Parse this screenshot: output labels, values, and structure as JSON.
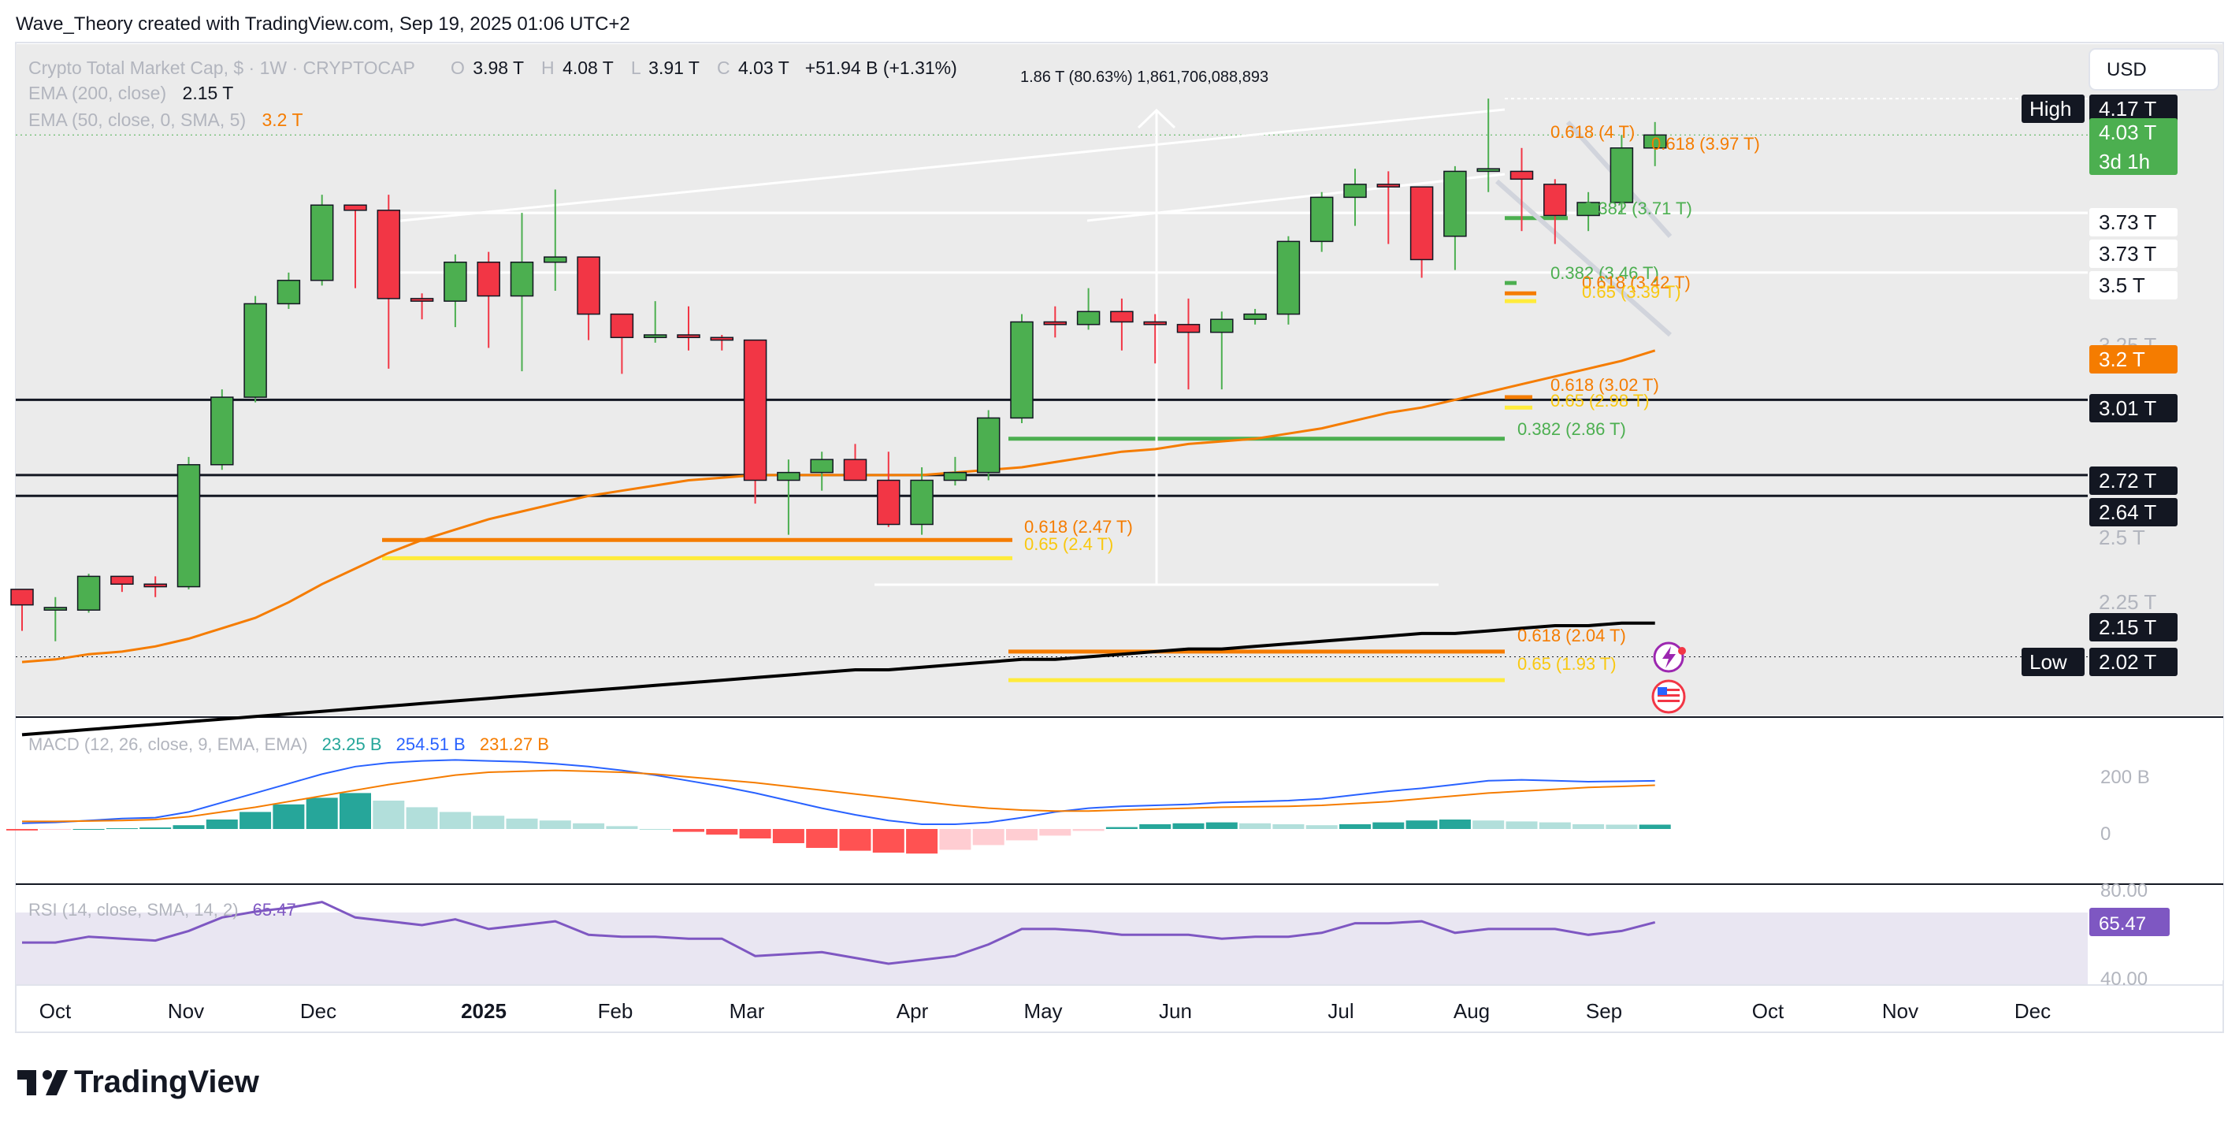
{
  "header": {
    "attribution": "Wave_Theory created with TradingView.com, Sep 19, 2025 01:06 UTC+2",
    "logo_text": "TradingView"
  },
  "legend": {
    "symbol": "Crypto Total Market Cap, $ · 1W · CRYPTOCAP",
    "o_label": "O",
    "o": "3.98 T",
    "h_label": "H",
    "h": "4.08 T",
    "l_label": "L",
    "l": "3.91 T",
    "c_label": "C",
    "c": "4.03 T",
    "change": "+51.94 B (+1.31%)",
    "ema200_label": "EMA (200, close)",
    "ema200_value": "2.15 T",
    "ema50_label": "EMA (50, close, 0, SMA, 5)",
    "ema50_value": "3.2 T"
  },
  "measure_label": "1.86 T (80.63%) 1,861,706,088,893",
  "currency_button": "USD",
  "colors": {
    "up": "#4caf50",
    "down": "#f23645",
    "ema50": "#f57c00",
    "ema200": "#000000",
    "macd_line": "#2962ff",
    "signal_line": "#f57c00",
    "rsi": "#7e57c2",
    "fib_orange": "#f57c00",
    "fib_yellow": "#ffeb3b",
    "fib_green": "#4caf50",
    "hist_teal": "#26a69a"
  },
  "price_tags": [
    {
      "prefix": "High",
      "value": "4.17 T",
      "style": "dark"
    },
    {
      "value": "4.03 T",
      "sub": "3d 1h",
      "style": "green"
    },
    {
      "value": "3.73 T",
      "style": "light"
    },
    {
      "value": "3.73 T",
      "style": "light"
    },
    {
      "value": "3.5 T",
      "style": "light"
    },
    {
      "value": "3.25 T",
      "style": "faded"
    },
    {
      "value": "3.2 T",
      "style": "orange"
    },
    {
      "value": "3.01 T",
      "style": "dark"
    },
    {
      "value": "2.72 T",
      "style": "dark"
    },
    {
      "value": "2.64 T",
      "style": "dark"
    },
    {
      "value": "2.5 T",
      "style": "faded"
    },
    {
      "value": "2.25 T",
      "style": "faded"
    },
    {
      "value": "2.15 T",
      "style": "dark"
    },
    {
      "prefix": "Low",
      "value": "2.02 T",
      "style": "dark"
    }
  ],
  "fib_labels": [
    {
      "text": "0.618 (4 T)",
      "color": "orange"
    },
    {
      "text": "0.618 (3.97 T)",
      "color": "orange"
    },
    {
      "text": "0.382 (3.71 T)",
      "color": "green"
    },
    {
      "text": "0.382 (3.46 T)",
      "color": "green"
    },
    {
      "text": "0.618 (3.42 T)",
      "color": "orange"
    },
    {
      "text": "0.65 (3.39 T)",
      "color": "yellow"
    },
    {
      "text": "0.618 (3.02 T)",
      "color": "orange"
    },
    {
      "text": "0.65 (2.98 T)",
      "color": "yellow"
    },
    {
      "text": "0.382 (2.86 T)",
      "color": "green"
    },
    {
      "text": "0.618 (2.47 T)",
      "color": "orange"
    },
    {
      "text": "0.65 (2.4 T)",
      "color": "yellow"
    },
    {
      "text": "0.618 (2.04 T)",
      "color": "orange"
    },
    {
      "text": "0.65 (1.93 T)",
      "color": "yellow"
    }
  ],
  "macd": {
    "label": "MACD (12, 26, close, 9, EMA, EMA)",
    "hist_value": "23.25 B",
    "macd_value": "254.51 B",
    "signal_value": "231.27 B",
    "axis": [
      "200 B",
      "0"
    ]
  },
  "rsi": {
    "label": "RSI (14, close, SMA, 14, 2)",
    "value": "65.47",
    "axis": [
      "80.00",
      "40.00"
    ]
  },
  "time_axis": [
    "Oct",
    "Nov",
    "Dec",
    "2025",
    "Feb",
    "Mar",
    "Apr",
    "May",
    "Jun",
    "Jul",
    "Aug",
    "Sep",
    "Oct",
    "Nov",
    "Dec"
  ],
  "chart_data": {
    "type": "candlestick",
    "title": "Crypto Total Market Cap, $ · 1W · CRYPTOCAP",
    "unit": "T",
    "ylim": [
      1.8,
      4.38
    ],
    "candles": [
      [
        2.28,
        2.22,
        2.24,
        2.12
      ],
      [
        2.2,
        2.21,
        2.25,
        2.08
      ],
      [
        2.2,
        2.33,
        2.34,
        2.19
      ],
      [
        2.33,
        2.3,
        2.33,
        2.27
      ],
      [
        2.3,
        2.29,
        2.33,
        2.25
      ],
      [
        2.29,
        2.76,
        2.79,
        2.28
      ],
      [
        2.76,
        3.02,
        3.05,
        2.74
      ],
      [
        3.02,
        3.38,
        3.41,
        3.0
      ],
      [
        3.38,
        3.47,
        3.5,
        3.36
      ],
      [
        3.47,
        3.76,
        3.8,
        3.45
      ],
      [
        3.76,
        3.74,
        3.75,
        3.44
      ],
      [
        3.74,
        3.4,
        3.8,
        3.13
      ],
      [
        3.4,
        3.39,
        3.42,
        3.32
      ],
      [
        3.39,
        3.54,
        3.57,
        3.29
      ],
      [
        3.54,
        3.41,
        3.58,
        3.21
      ],
      [
        3.41,
        3.54,
        3.73,
        3.12
      ],
      [
        3.54,
        3.56,
        3.82,
        3.43
      ],
      [
        3.56,
        3.34,
        3.56,
        3.24
      ],
      [
        3.34,
        3.25,
        3.28,
        3.11
      ],
      [
        3.25,
        3.26,
        3.39,
        3.23
      ],
      [
        3.26,
        3.25,
        3.37,
        3.2
      ],
      [
        3.25,
        3.24,
        3.26,
        3.2
      ],
      [
        3.24,
        2.7,
        3.24,
        2.61
      ],
      [
        2.7,
        2.73,
        2.78,
        2.49
      ],
      [
        2.73,
        2.78,
        2.81,
        2.66
      ],
      [
        2.78,
        2.7,
        2.84,
        2.7
      ],
      [
        2.7,
        2.53,
        2.81,
        2.52
      ],
      [
        2.53,
        2.7,
        2.75,
        2.49
      ],
      [
        2.7,
        2.73,
        2.79,
        2.68
      ],
      [
        2.73,
        2.94,
        2.97,
        2.7
      ],
      [
        2.94,
        3.31,
        3.34,
        2.92
      ],
      [
        3.31,
        3.3,
        3.37,
        3.25
      ],
      [
        3.3,
        3.35,
        3.44,
        3.28
      ],
      [
        3.35,
        3.31,
        3.4,
        3.2
      ],
      [
        3.31,
        3.3,
        3.34,
        3.15
      ],
      [
        3.3,
        3.27,
        3.4,
        3.05
      ],
      [
        3.27,
        3.32,
        3.35,
        3.05
      ],
      [
        3.32,
        3.34,
        3.36,
        3.3
      ],
      [
        3.34,
        3.62,
        3.64,
        3.3
      ],
      [
        3.62,
        3.79,
        3.81,
        3.58
      ],
      [
        3.79,
        3.84,
        3.9,
        3.68
      ],
      [
        3.84,
        3.83,
        3.89,
        3.61
      ],
      [
        3.83,
        3.55,
        3.77,
        3.48
      ],
      [
        3.64,
        3.89,
        3.91,
        3.51
      ],
      [
        3.89,
        3.9,
        4.17,
        3.81
      ],
      [
        3.89,
        3.86,
        3.98,
        3.66
      ],
      [
        3.84,
        3.72,
        3.86,
        3.61
      ],
      [
        3.72,
        3.77,
        3.81,
        3.66
      ],
      [
        3.77,
        3.98,
        4.03,
        3.73
      ],
      [
        3.98,
        4.03,
        4.08,
        3.91
      ]
    ],
    "high": 4.17,
    "low": 2.02,
    "horizontal_levels": [
      4.17,
      3.73,
      3.73,
      3.5,
      3.01,
      2.72,
      2.64
    ],
    "ema50": [
      2.0,
      2.01,
      2.03,
      2.04,
      2.06,
      2.09,
      2.13,
      2.17,
      2.23,
      2.3,
      2.36,
      2.42,
      2.47,
      2.51,
      2.55,
      2.58,
      2.61,
      2.64,
      2.66,
      2.68,
      2.7,
      2.71,
      2.72,
      2.72,
      2.72,
      2.72,
      2.72,
      2.72,
      2.73,
      2.74,
      2.75,
      2.77,
      2.79,
      2.81,
      2.82,
      2.84,
      2.85,
      2.86,
      2.88,
      2.9,
      2.93,
      2.96,
      2.98,
      3.01,
      3.04,
      3.07,
      3.1,
      3.13,
      3.16,
      3.2
    ],
    "ema200": [
      1.72,
      1.73,
      1.74,
      1.75,
      1.76,
      1.77,
      1.78,
      1.79,
      1.8,
      1.81,
      1.82,
      1.83,
      1.84,
      1.85,
      1.86,
      1.87,
      1.88,
      1.89,
      1.9,
      1.91,
      1.92,
      1.93,
      1.94,
      1.95,
      1.96,
      1.97,
      1.97,
      1.98,
      1.99,
      2.0,
      2.01,
      2.01,
      2.02,
      2.03,
      2.04,
      2.05,
      2.05,
      2.06,
      2.07,
      2.08,
      2.09,
      2.1,
      2.11,
      2.11,
      2.12,
      2.13,
      2.14,
      2.14,
      2.15,
      2.15
    ],
    "macd_hist": [
      -8,
      -4,
      0,
      4,
      8,
      20,
      50,
      90,
      130,
      165,
      190,
      150,
      115,
      90,
      70,
      55,
      45,
      30,
      15,
      0,
      -15,
      -30,
      -50,
      -75,
      -100,
      -115,
      -125,
      -130,
      -110,
      -85,
      -60,
      -35,
      -10,
      10,
      25,
      30,
      35,
      30,
      25,
      20,
      25,
      35,
      45,
      50,
      45,
      40,
      35,
      25,
      23,
      23
    ],
    "macd_line": [
      30,
      35,
      45,
      55,
      60,
      90,
      140,
      190,
      240,
      290,
      330,
      350,
      360,
      365,
      360,
      355,
      345,
      330,
      310,
      285,
      255,
      225,
      190,
      150,
      110,
      75,
      45,
      25,
      25,
      35,
      60,
      90,
      110,
      120,
      125,
      130,
      140,
      145,
      150,
      160,
      180,
      200,
      215,
      235,
      255,
      260,
      255,
      250,
      252,
      254.51
    ],
    "signal_line": [
      40,
      40,
      42,
      45,
      50,
      65,
      90,
      115,
      145,
      175,
      205,
      235,
      260,
      285,
      300,
      305,
      310,
      305,
      300,
      290,
      275,
      260,
      245,
      225,
      205,
      185,
      165,
      145,
      125,
      110,
      100,
      95,
      95,
      100,
      105,
      110,
      115,
      118,
      120,
      125,
      135,
      145,
      160,
      175,
      190,
      200,
      210,
      220,
      225,
      231.27
    ],
    "rsi": [
      55,
      55,
      58,
      57,
      56,
      61,
      68,
      71,
      73,
      76,
      68,
      66,
      64,
      67,
      62,
      64,
      66,
      59,
      58,
      58,
      57,
      57,
      48,
      49,
      50,
      47,
      44,
      46,
      48,
      54,
      62,
      62,
      61,
      59,
      59,
      59,
      57,
      58,
      58,
      60,
      65,
      65,
      66,
      60,
      62,
      62,
      62,
      59,
      61,
      65.47
    ],
    "fib_zones": [
      {
        "level": 4.0,
        "kind": "orange"
      },
      {
        "level": 3.97,
        "kind": "orange"
      },
      {
        "level": 3.71,
        "kind": "green"
      },
      {
        "level": 3.46,
        "kind": "green"
      },
      {
        "level": 3.42,
        "kind": "orange"
      },
      {
        "level": 3.39,
        "kind": "yellow"
      },
      {
        "level": 3.02,
        "kind": "orange"
      },
      {
        "level": 2.98,
        "kind": "yellow"
      },
      {
        "level": 2.86,
        "kind": "green"
      },
      {
        "level": 2.47,
        "kind": "orange"
      },
      {
        "level": 2.4,
        "kind": "yellow"
      },
      {
        "level": 2.04,
        "kind": "orange"
      },
      {
        "level": 1.93,
        "kind": "yellow"
      }
    ]
  }
}
